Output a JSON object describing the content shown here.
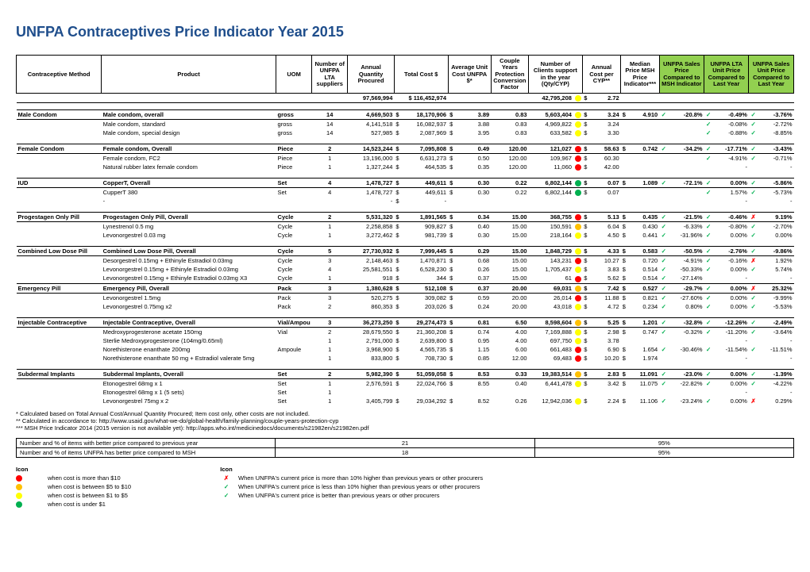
{
  "title": "UNFPA Contraceptives Price Indicator Year 2015",
  "headers": {
    "method": "Contraceptive Method",
    "product": "Product",
    "uom": "UOM",
    "suppliers": "Number of UNFPA LTA suppliers",
    "qty": "Annual Quantity Procured",
    "cost": "Total Cost $",
    "avgunit": "Average Unit Cost UNFPA $*",
    "cyp": "Couple Years Protection Conversion Factor",
    "clients": "Number of Clients support in the year (Qty/CYP)",
    "annualcyp": "Annual Cost per CYP**",
    "median": "Median Price MSH Price Indicator***",
    "msh": "UNFPA Sales Price Compared to MSH Indicator",
    "lta": "UNFPA LTA Unit Price Compared to Last Year",
    "sales": "UNFPA Sales Unit Price Compared to Last Year"
  },
  "totals": {
    "qty": "97,569,994",
    "cost": "$ 116,452,974",
    "clients": "42,795,208",
    "cyp": "2.72"
  },
  "rows": [
    {
      "t": "cat",
      "method": "Male Condom",
      "product": "Male condom, overall",
      "uom": "gross",
      "sup": "14",
      "qty": "4,669,503",
      "cost": "18,170,906",
      "avg": "3.89",
      "cypf": "0.83",
      "cli": "5,603,404",
      "ci": "yellow",
      "cyp": "3.24",
      "med": "4.910",
      "mi": "chk",
      "msh": "-20.8%",
      "li": "chk",
      "lta": "-0.49%",
      "si": "chk",
      "sal": "-3.76%"
    },
    {
      "t": "row",
      "product": "Male condom, standard",
      "uom": "gross",
      "sup": "14",
      "qty": "4,141,518",
      "cost": "16,082,937",
      "avg": "3.88",
      "cypf": "0.83",
      "cli": "4,969,822",
      "ci": "yellow",
      "cyp": "3.24",
      "li": "chk",
      "lta": "-0.08%",
      "si": "chk",
      "sal": "-2.72%"
    },
    {
      "t": "row",
      "product": "Male condom, special design",
      "uom": "gross",
      "sup": "14",
      "qty": "527,985",
      "cost": "2,087,969",
      "avg": "3.95",
      "cypf": "0.83",
      "cli": "633,582",
      "ci": "yellow",
      "cyp": "3.30",
      "li": "chk",
      "lta": "-0.88%",
      "si": "chk",
      "sal": "-8.85%"
    },
    {
      "t": "sp"
    },
    {
      "t": "cat",
      "method": "Female Condom",
      "product": "Female condom, Overall",
      "uom": "Piece",
      "sup": "2",
      "qty": "14,523,244",
      "cost": "7,095,808",
      "avg": "0.49",
      "cypf": "120.00",
      "cli": "121,027",
      "ci": "red",
      "cyp": "58.63",
      "med": "0.742",
      "mi": "chk",
      "msh": "-34.2%",
      "li": "chk",
      "lta": "-17.71%",
      "si": "chk",
      "sal": "-3.43%"
    },
    {
      "t": "row",
      "product": "Female condom, FC2",
      "uom": "Piece",
      "sup": "1",
      "qty": "13,196,000",
      "cost": "6,631,273",
      "avg": "0.50",
      "cypf": "120.00",
      "cli": "109,967",
      "ci": "red",
      "cyp": "60.30",
      "li": "chk",
      "lta": "-4.91%",
      "si": "chk",
      "sal": "-0.71%"
    },
    {
      "t": "row",
      "product": "Natural rubber latex female condom",
      "uom": "Piece",
      "sup": "1",
      "qty": "1,327,244",
      "cost": "464,535",
      "avg": "0.35",
      "cypf": "120.00",
      "cli": "11,060",
      "ci": "red",
      "cyp": "42.00",
      "lta": "-",
      "sal": "-"
    },
    {
      "t": "sp"
    },
    {
      "t": "cat",
      "method": "IUD",
      "product": "CopperT, Overall",
      "uom": "Set",
      "sup": "4",
      "qty": "1,478,727",
      "cost": "449,611",
      "avg": "0.30",
      "cypf": "0.22",
      "cli": "6,802,144",
      "ci": "green",
      "cyp": "0.07",
      "med": "1.089",
      "mi": "chk",
      "msh": "-72.1%",
      "li": "chk",
      "lta": "0.00%",
      "si": "chk",
      "sal": "-5.86%"
    },
    {
      "t": "row",
      "product": "CupperT 380",
      "uom": "Set",
      "sup": "4",
      "qty": "1,478,727",
      "cost": "449,611",
      "avg": "0.30",
      "cypf": "0.22",
      "cli": "6,802,144",
      "ci": "green",
      "cyp": "0.07",
      "li": "chk",
      "lta": "1.57%",
      "si": "chk",
      "sal": "-5.73%"
    },
    {
      "t": "row",
      "product": "-",
      "uom": "",
      "sup": "",
      "qty": "-",
      "cost": "-",
      "avg": "",
      "cypf": "",
      "cli": "",
      "cyp": "",
      "lta": "-",
      "sal": "-"
    },
    {
      "t": "sp"
    },
    {
      "t": "cat",
      "method": "Progestagen Only Pill",
      "product": "Progestagen Only Pill, Overall",
      "uom": "Cycle",
      "sup": "2",
      "qty": "5,531,320",
      "cost": "1,891,565",
      "avg": "0.34",
      "cypf": "15.00",
      "cli": "368,755",
      "ci": "red",
      "cyp": "5.13",
      "med": "0.435",
      "mi": "chk",
      "msh": "-21.5%",
      "li": "chk",
      "lta": "-0.46%",
      "si": "ex",
      "sal": "9.19%"
    },
    {
      "t": "row",
      "product": "Lynestrenol 0.5 mg",
      "uom": "Cycle",
      "sup": "1",
      "qty": "2,258,858",
      "cost": "909,827",
      "avg": "0.40",
      "cypf": "15.00",
      "cli": "150,591",
      "ci": "orange",
      "cyp": "6.04",
      "med": "0.430",
      "mi": "chk",
      "msh": "-6.33%",
      "li": "chk",
      "lta": "-0.80%",
      "si": "chk",
      "sal": "-2.70%"
    },
    {
      "t": "row",
      "product": "Levonorgestrel 0.03 mg",
      "uom": "Cycle",
      "sup": "1",
      "qty": "3,272,462",
      "cost": "981,739",
      "avg": "0.30",
      "cypf": "15.00",
      "cli": "218,164",
      "ci": "yellow",
      "cyp": "4.50",
      "med": "0.441",
      "mi": "chk",
      "msh": "-31.96%",
      "li": "chk",
      "lta": "0.00%",
      "si": "chk",
      "sal": "0.00%"
    },
    {
      "t": "sp"
    },
    {
      "t": "cat",
      "method": "Combined Low Dose Pill",
      "product": "Combined Low Dose Pill, Overall",
      "uom": "Cycle",
      "sup": "5",
      "qty": "27,730,932",
      "cost": "7,999,445",
      "avg": "0.29",
      "cypf": "15.00",
      "cli": "1,848,729",
      "ci": "yellow",
      "cyp": "4.33",
      "med": "0.583",
      "mi": "chk",
      "msh": "-50.5%",
      "li": "chk",
      "lta": "-2.76%",
      "si": "chk",
      "sal": "-9.86%"
    },
    {
      "t": "row",
      "product": "Desorgestrel 0.15mg + Ethinyle Estradiol 0.03mg",
      "uom": "Cycle",
      "sup": "3",
      "qty": "2,148,463",
      "cost": "1,470,871",
      "avg": "0.68",
      "cypf": "15.00",
      "cli": "143,231",
      "ci": "red",
      "cyp": "10.27",
      "med": "0.720",
      "mi": "chk",
      "msh": "-4.91%",
      "li": "chk",
      "lta": "-0.16%",
      "si": "ex",
      "sal": "1.92%"
    },
    {
      "t": "row",
      "product": "Levonorgestrel 0.15mg + Ethinyle Estradiol 0.03mg",
      "uom": "Cycle",
      "sup": "4",
      "qty": "25,581,551",
      "cost": "6,528,230",
      "avg": "0.26",
      "cypf": "15.00",
      "cli": "1,705,437",
      "ci": "yellow",
      "cyp": "3.83",
      "med": "0.514",
      "mi": "chk",
      "msh": "-50.33%",
      "li": "chk",
      "lta": "0.00%",
      "si": "chk",
      "sal": "5.74%"
    },
    {
      "t": "row",
      "product": "Levonorgestrel  0.15mg + Ethinyle Estradiol 0.03mg X3",
      "uom": "Cycle",
      "sup": "1",
      "qty": "918",
      "cost": "344",
      "avg": "0.37",
      "cypf": "15.00",
      "cli": "61",
      "ci": "red",
      "cyp": "5.62",
      "med": "0.514",
      "mi": "chk",
      "msh": "-27.14%",
      "lta": "-",
      "sal": "-"
    },
    {
      "t": "cat",
      "method": "Emergency Pill",
      "product": "Emergency Pill, Overall",
      "uom": "Pack",
      "sup": "3",
      "qty": "1,380,628",
      "cost": "512,108",
      "avg": "0.37",
      "cypf": "20.00",
      "cli": "69,031",
      "ci": "orange",
      "cyp": "7.42",
      "med": "0.527",
      "mi": "chk",
      "msh": "-29.7%",
      "li": "chk",
      "lta": "0.00%",
      "si": "ex",
      "sal": "25.32%"
    },
    {
      "t": "row",
      "product": "Levonorgestrel 1.5mg",
      "uom": "Pack",
      "sup": "3",
      "qty": "520,275",
      "cost": "309,082",
      "avg": "0.59",
      "cypf": "20.00",
      "cli": "26,014",
      "ci": "red",
      "cyp": "11.88",
      "med": "0.821",
      "mi": "chk",
      "msh": "-27.60%",
      "li": "chk",
      "lta": "0.00%",
      "si": "chk",
      "sal": "-9.99%"
    },
    {
      "t": "row",
      "product": "Levonorgestrel 0.75mg x2",
      "uom": "Pack",
      "sup": "2",
      "qty": "860,353",
      "cost": "203,026",
      "avg": "0.24",
      "cypf": "20.00",
      "cli": "43,018",
      "ci": "yellow",
      "cyp": "4.72",
      "med": "0.234",
      "mi": "chk",
      "msh": "0.80%",
      "li": "chk",
      "lta": "0.00%",
      "si": "chk",
      "sal": "-5.53%"
    },
    {
      "t": "sp"
    },
    {
      "t": "cat",
      "method": "Injectable Contraceptive",
      "product": "Injectable Contraceptive, Overall",
      "uom": "Vial/Ampou",
      "sup": "3",
      "qty": "36,273,250",
      "cost": "29,274,473",
      "avg": "0.81",
      "cypf": "6.50",
      "cli": "8,598,604",
      "ci": "orange",
      "cyp": "5.25",
      "med": "1.201",
      "mi": "chk",
      "msh": "-32.8%",
      "li": "chk",
      "lta": "-12.26%",
      "si": "chk",
      "sal": "-2.49%"
    },
    {
      "t": "row",
      "product": "Medroxyprogesterone acetate 150mg",
      "uom": "Vial",
      "sup": "2",
      "qty": "28,679,550",
      "cost": "21,360,208",
      "avg": "0.74",
      "cypf": "4.00",
      "cli": "7,169,888",
      "ci": "yellow",
      "cyp": "2.98",
      "med": "0.747",
      "mi": "chk",
      "msh": "-0.32%",
      "li": "chk",
      "lta": "-11.20%",
      "si": "chk",
      "sal": "-3.64%"
    },
    {
      "t": "row",
      "product": "Sterlie Medroxyprogesterone (104mg/0.65ml)",
      "uom": "",
      "sup": "1",
      "qty": "2,791,000",
      "cost": "2,639,800",
      "avg": "0.95",
      "cypf": "4.00",
      "cli": "697,750",
      "ci": "yellow",
      "cyp": "3.78",
      "lta": "-",
      "sal": "-"
    },
    {
      "t": "row",
      "product": "Norethisterone enanthate 200mg",
      "uom": "Ampoule",
      "sup": "1",
      "qty": "3,968,900",
      "cost": "4,565,735",
      "avg": "1.15",
      "cypf": "6.00",
      "cli": "661,483",
      "ci": "red",
      "cyp": "6.90",
      "med": "1.654",
      "mi": "chk",
      "msh": "-30.46%",
      "li": "chk",
      "lta": "-11.54%",
      "si": "chk",
      "sal": "-11.51%"
    },
    {
      "t": "row",
      "product": "Norethisterone enanthate 50 mg + Estradiol valerate 5mg",
      "uom": "",
      "sup": "1",
      "qty": "833,800",
      "cost": "708,730",
      "avg": "0.85",
      "cypf": "12.00",
      "cli": "69,483",
      "ci": "red",
      "cyp": "10.20",
      "med": "1.974",
      "lta": "-",
      "sal": "-"
    },
    {
      "t": "sp"
    },
    {
      "t": "cat",
      "method": "Subdermal Implants",
      "product": "Subdermal Implants, Overall",
      "uom": "Set",
      "sup": "2",
      "qty": "5,982,390",
      "cost": "51,059,058",
      "avg": "8.53",
      "cypf": "0.33",
      "cli": "19,383,514",
      "ci": "orange",
      "cyp": "2.83",
      "med": "11.091",
      "mi": "chk",
      "msh": "-23.0%",
      "li": "chk",
      "lta": "0.00%",
      "si": "chk",
      "sal": "-1.39%"
    },
    {
      "t": "row",
      "product": "Etonogestrel 68mg x 1",
      "uom": "Set",
      "sup": "1",
      "qty": "2,576,591",
      "cost": "22,024,766",
      "avg": "8.55",
      "cypf": "0.40",
      "cli": "6,441,478",
      "ci": "yellow",
      "cyp": "3.42",
      "med": "11.075",
      "mi": "chk",
      "msh": "-22.82%",
      "li": "chk",
      "lta": "0.00%",
      "si": "chk",
      "sal": "-4.22%"
    },
    {
      "t": "row",
      "product": "Etonogestrel 68mg x 1 (5 sets)",
      "uom": "Set",
      "sup": "1",
      "qty": "",
      "cost": "",
      "avg": "",
      "cypf": "",
      "cli": "",
      "cyp": "",
      "lta": "-",
      "sal": "-"
    },
    {
      "t": "row",
      "product": "Levonorgestrel 75mg x 2",
      "uom": "Set",
      "sup": "1",
      "qty": "3,405,799",
      "cost": "29,034,292",
      "avg": "8.52",
      "cypf": "0.26",
      "cli": "12,942,036",
      "ci": "yellow",
      "cyp": "2.24",
      "med": "11.106",
      "mi": "chk",
      "msh": "-23.24%",
      "li": "chk",
      "lta": "0.00%",
      "si": "ex",
      "sal": "0.29%"
    }
  ],
  "notes": [
    "* Calculated based on Total Annual Cost/Annual Quantity Procured; Item cost only, other costs are not included.",
    "** Calculated in accordance to: http://www.usaid.gov/what-we-do/global-health/family-planning/couple-years-protection-cyp",
    "*** MSH Price Indicator 2014 (2015 version is not available yet): http://apps.who.int/medicinedocs/documents/s21982en/s21982en.pdf"
  ],
  "summary": [
    {
      "label": "Number and % of items with better price compared to previous year",
      "n": "21",
      "p": "95%"
    },
    {
      "label": "Number and % of items UNFPA has better price compared to MSH",
      "n": "18",
      "p": "95%"
    }
  ],
  "legend": {
    "hdr": "Icon",
    "left": [
      {
        "i": "red",
        "t": "when cost is more than $10"
      },
      {
        "i": "orange",
        "t": "when cost is between $5 to $10"
      },
      {
        "i": "yellow",
        "t": "when cost is between $1 to $5"
      },
      {
        "i": "green",
        "t": "when cost is under $1"
      }
    ],
    "right": [
      {
        "i": "ex",
        "t": "When UNFPA's current price is more than 10% higher than previous years or other procurers"
      },
      {
        "i": "chk",
        "t": "When UNFPA's current price is less than 10% higher than previous years or other procurers"
      },
      {
        "i": "chk",
        "t": "When UNFPA's current price is better than previous years or other procurers"
      }
    ]
  }
}
